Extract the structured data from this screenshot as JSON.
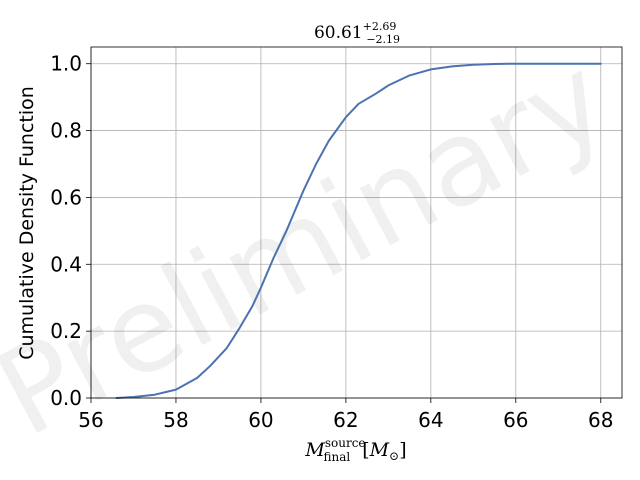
{
  "chart_data": {
    "type": "line",
    "title": {
      "value": "60.61",
      "sup": "+2.69",
      "sub": "−2.19"
    },
    "xlabel": {
      "base": "M",
      "sup": "source",
      "sub": "final",
      "unit_prefix": "[",
      "unit": "M",
      "unit_sub": "⊙",
      "unit_suffix": "]"
    },
    "ylabel": "Cumulative Density Function",
    "xlim": [
      56,
      68.5
    ],
    "ylim": [
      0,
      1.05
    ],
    "xticks": [
      56,
      58,
      60,
      62,
      64,
      66,
      68
    ],
    "yticks": [
      0.0,
      0.2,
      0.4,
      0.6,
      0.8,
      1.0
    ],
    "xtick_labels": [
      "56",
      "58",
      "60",
      "62",
      "64",
      "66",
      "68"
    ],
    "ytick_labels": [
      "0.0",
      "0.2",
      "0.4",
      "0.6",
      "0.8",
      "1.0"
    ],
    "grid": true,
    "watermark": "Preliminary",
    "series": [
      {
        "color": "#4c72b0",
        "x": [
          56.6,
          57.0,
          57.5,
          58.0,
          58.5,
          58.8,
          59.2,
          59.5,
          59.8,
          60.0,
          60.3,
          60.6,
          61.0,
          61.3,
          61.6,
          62.0,
          62.3,
          62.7,
          63.0,
          63.5,
          64.0,
          64.5,
          65.0,
          65.5,
          66.0,
          67.0,
          68.0
        ],
        "y": [
          0.0,
          0.003,
          0.01,
          0.025,
          0.06,
          0.095,
          0.15,
          0.21,
          0.275,
          0.33,
          0.42,
          0.5,
          0.62,
          0.7,
          0.77,
          0.84,
          0.88,
          0.91,
          0.935,
          0.965,
          0.983,
          0.992,
          0.997,
          0.999,
          1.0,
          1.0,
          1.0
        ]
      }
    ]
  }
}
